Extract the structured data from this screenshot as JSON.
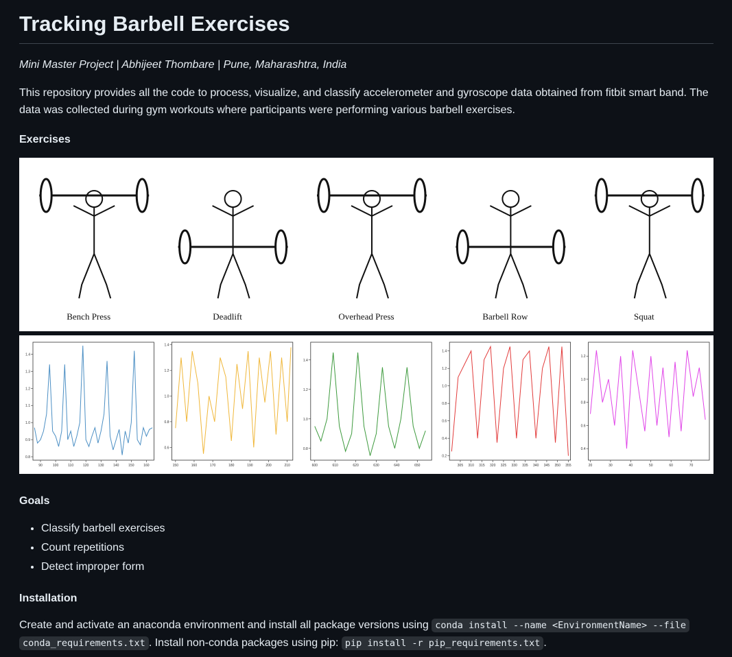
{
  "header": {
    "title": "Tracking Barbell Exercises"
  },
  "subtitle": "Mini Master Project | Abhijeet Thombare | Pune, Maharashtra, India",
  "intro": "This repository provides all the code to process, visualize, and classify accelerometer and gyroscope data obtained from fitbit smart band. The data was collected during gym workouts where participants were performing various barbell exercises.",
  "exercises": {
    "heading": "Exercises",
    "names": [
      "Bench Press",
      "Deadlift",
      "Overhead Press",
      "Barbell Row",
      "Squat"
    ]
  },
  "chart_data": [
    {
      "type": "line",
      "color": "#4c8fc4",
      "x": [
        86,
        88,
        90,
        92,
        94,
        96,
        98,
        100,
        102,
        104,
        106,
        108,
        110,
        112,
        114,
        116,
        118,
        120,
        122,
        124,
        126,
        128,
        130,
        132,
        134,
        136,
        138,
        140,
        142,
        144,
        146,
        148,
        150,
        152,
        154,
        156,
        158,
        160,
        162,
        164
      ],
      "values": [
        0.97,
        0.88,
        0.9,
        0.95,
        1.05,
        1.34,
        0.95,
        0.92,
        0.86,
        0.95,
        1.34,
        0.9,
        0.95,
        0.86,
        0.92,
        1.0,
        1.45,
        0.9,
        0.86,
        0.92,
        0.97,
        0.88,
        0.95,
        1.05,
        1.36,
        0.92,
        0.84,
        0.9,
        0.96,
        0.81,
        0.95,
        0.88,
        1.0,
        1.42,
        0.9,
        0.87,
        0.97,
        0.92,
        0.96,
        0.97
      ],
      "xlim": [
        85,
        165
      ],
      "ylim": [
        0.78,
        1.47
      ],
      "xticks": [
        90,
        100,
        110,
        120,
        130,
        140,
        150,
        160
      ],
      "yticks": [
        0.8,
        0.9,
        {
          "value": 1,
          "label": "1.0"
        },
        1.1,
        1.2,
        1.3,
        1.4
      ]
    },
    {
      "type": "line",
      "color": "#f0b73a",
      "x": [
        150,
        153,
        156,
        159,
        162,
        165,
        168,
        171,
        174,
        177,
        180,
        183,
        186,
        189,
        192,
        195,
        198,
        201,
        204,
        207,
        210,
        212
      ],
      "values": [
        0.75,
        1.3,
        0.8,
        1.35,
        1.1,
        0.55,
        1.0,
        0.8,
        1.3,
        1.15,
        0.65,
        1.25,
        0.9,
        1.35,
        0.6,
        1.3,
        0.95,
        1.35,
        0.7,
        1.3,
        0.8,
        1.38
      ],
      "xlim": [
        148,
        213
      ],
      "ylim": [
        0.5,
        1.42
      ],
      "xticks": [
        150,
        160,
        170,
        180,
        190,
        200,
        210
      ],
      "yticks": [
        0.6,
        0.8,
        {
          "value": 1,
          "label": "1.0"
        },
        1.2,
        1.4
      ]
    },
    {
      "type": "line",
      "color": "#3d9a3d",
      "x": [
        600,
        603,
        606,
        609,
        612,
        615,
        618,
        621,
        624,
        627,
        630,
        633,
        636,
        639,
        642,
        645,
        648,
        651,
        654
      ],
      "values": [
        0.95,
        0.85,
        1.0,
        1.45,
        0.95,
        0.78,
        0.9,
        1.45,
        0.95,
        0.75,
        0.9,
        1.35,
        0.95,
        0.8,
        1.0,
        1.35,
        0.95,
        0.8,
        0.92
      ],
      "xlim": [
        598,
        657
      ],
      "ylim": [
        0.72,
        1.52
      ],
      "xticks": [
        600,
        610,
        620,
        630,
        640,
        650
      ],
      "yticks": [
        0.8,
        {
          "value": 1,
          "label": "1.0"
        },
        1.2,
        1.4
      ]
    },
    {
      "type": "line",
      "color": "#e23b3b",
      "x": [
        301,
        304,
        307,
        310,
        313,
        316,
        319,
        322,
        325,
        328,
        331,
        334,
        337,
        340,
        343,
        346,
        349,
        352,
        355
      ],
      "values": [
        0.25,
        1.1,
        1.25,
        1.4,
        0.4,
        1.3,
        1.45,
        0.35,
        1.2,
        1.45,
        0.4,
        1.3,
        1.4,
        0.4,
        1.2,
        1.45,
        0.35,
        1.45,
        0.2
      ],
      "xlim": [
        300,
        356
      ],
      "ylim": [
        0.15,
        1.5
      ],
      "xticks": [
        305,
        310,
        315,
        320,
        325,
        330,
        335,
        340,
        345,
        350,
        355
      ],
      "yticks": [
        0.2,
        0.4,
        0.6,
        0.8,
        {
          "value": 1,
          "label": "1.0"
        },
        1.2,
        1.4
      ]
    },
    {
      "type": "line",
      "color": "#e043e8",
      "x": [
        20,
        23,
        26,
        29,
        32,
        35,
        38,
        41,
        44,
        47,
        50,
        53,
        56,
        59,
        62,
        65,
        68,
        71,
        74,
        77
      ],
      "values": [
        0.7,
        1.25,
        0.8,
        1.0,
        0.6,
        1.2,
        0.4,
        1.25,
        0.9,
        0.55,
        1.2,
        0.6,
        1.1,
        0.5,
        1.15,
        0.55,
        1.25,
        0.85,
        1.1,
        0.65
      ],
      "xlim": [
        19,
        79
      ],
      "ylim": [
        0.3,
        1.32
      ],
      "xticks": [
        20,
        30,
        40,
        50,
        60,
        70
      ],
      "yticks": [
        0.4,
        0.6,
        0.8,
        {
          "value": 1,
          "label": "1.0"
        },
        1.2
      ]
    }
  ],
  "goals": {
    "heading": "Goals",
    "items": [
      "Classify barbell exercises",
      "Count repetitions",
      "Detect improper form"
    ]
  },
  "installation": {
    "heading": "Installation",
    "text1": "Create and activate an anaconda environment and install all package versions using ",
    "code1": "conda install --name <EnvironmentName> --file conda_requirements.txt",
    "text2": ". Install non-conda packages using pip: ",
    "code2": "pip install -r pip_requirements.txt",
    "text3": "."
  }
}
